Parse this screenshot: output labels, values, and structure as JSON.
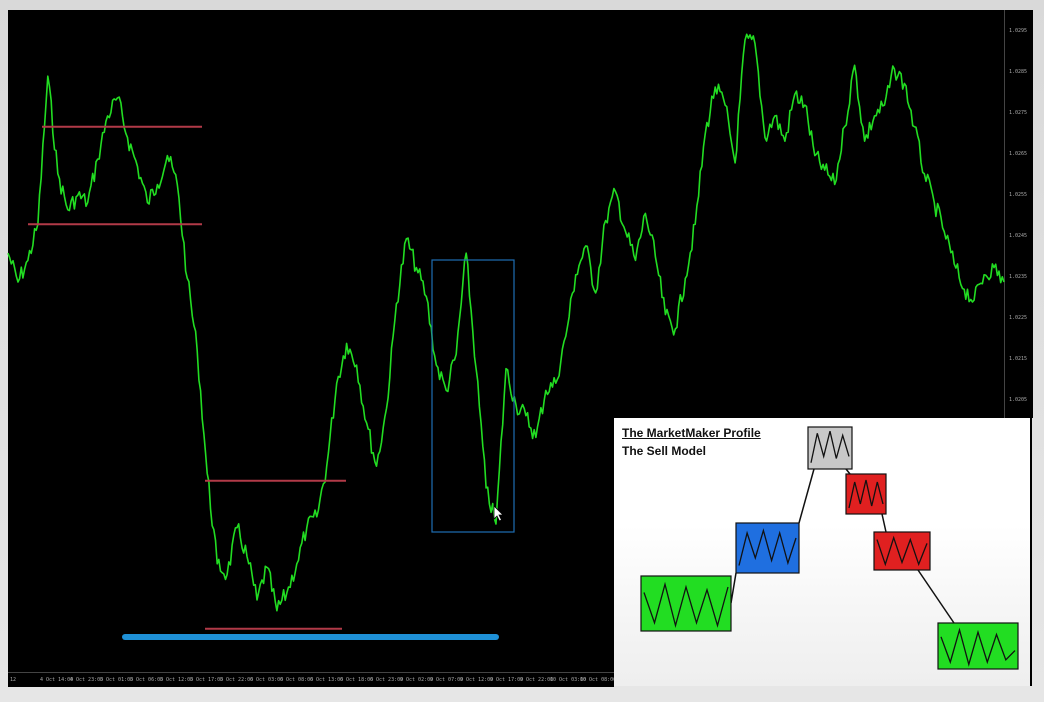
{
  "colors": {
    "background": "#000000",
    "price_line": "#22dd22",
    "range_line": "#b23a48",
    "highlight_box": "#1e6db3",
    "blue_bar": "#1e90d6",
    "box_green": "#22dd22",
    "box_blue": "#1f6fe0",
    "box_grey": "#c8c8c8",
    "box_red": "#e02020"
  },
  "price_axis": {
    "ticks": [
      "1.0295",
      "1.0285",
      "1.0275",
      "1.0265",
      "1.0255",
      "1.0245",
      "1.0235",
      "1.0225",
      "1.0215",
      "1.0205"
    ]
  },
  "time_axis": {
    "ticks": [
      "12",
      "4 Oct 14:00",
      "4 Oct 23:00",
      "5 Oct 01:00",
      "5 Oct 06:00",
      "5 Oct 12:00",
      "5 Oct 17:00",
      "5 Oct 22:00",
      "6 Oct 03:00",
      "6 Oct 08:00",
      "6 Oct 13:00",
      "6 Oct 18:00",
      "6 Oct 23:00",
      "9 Oct 02:00",
      "9 Oct 07:00",
      "9 Oct 12:00",
      "9 Oct 17:00",
      "9 Oct 22:00",
      "10 Oct 03:00",
      "10 Oct 08:00"
    ]
  },
  "chart_data": {
    "type": "line",
    "series": [
      {
        "x": [
          0,
          10,
          20,
          30,
          40,
          50,
          60,
          70,
          80,
          90,
          100,
          110,
          120,
          130,
          140,
          150,
          160,
          170,
          180,
          190,
          200,
          210,
          220,
          230,
          240,
          250,
          260,
          270,
          280,
          290,
          300,
          310,
          320,
          330,
          340,
          350,
          360,
          370,
          380,
          390,
          400,
          410,
          420,
          430,
          440,
          450,
          460,
          470,
          480,
          490,
          500,
          510,
          520,
          530,
          540,
          550,
          560,
          570,
          580,
          590,
          600,
          610,
          620,
          630,
          640,
          650,
          660,
          670,
          680,
          690,
          700,
          710,
          720,
          730,
          740,
          750,
          760,
          770,
          780,
          790,
          800,
          810,
          820,
          830,
          840,
          850,
          860,
          870,
          880,
          890,
          900,
          910,
          920,
          930,
          940,
          950,
          960,
          970,
          980,
          990,
          1000
        ],
        "y": [
          1.0237,
          1.0229,
          1.0235,
          1.0245,
          1.0286,
          1.0259,
          1.0249,
          1.0253,
          1.0251,
          1.0263,
          1.0275,
          1.028,
          1.0269,
          1.0261,
          1.0251,
          1.0256,
          1.0264,
          1.0256,
          1.023,
          1.021,
          1.0176,
          1.0151,
          1.0148,
          1.0161,
          1.0153,
          1.0141,
          1.015,
          1.0138,
          1.0143,
          1.0151,
          1.0161,
          1.0164,
          1.0178,
          1.0201,
          1.0212,
          1.0206,
          1.019,
          1.0178,
          1.0194,
          1.0223,
          1.0241,
          1.0233,
          1.0225,
          1.0206,
          1.0199,
          1.0209,
          1.0237,
          1.0205,
          1.0172,
          1.0162,
          1.0205,
          1.0195,
          1.0192,
          1.0186,
          1.0199,
          1.0201,
          1.0214,
          1.0231,
          1.0239,
          1.0226,
          1.0246,
          1.0254,
          1.0243,
          1.0235,
          1.0248,
          1.0236,
          1.022,
          1.0216,
          1.023,
          1.0245,
          1.027,
          1.0283,
          1.0278,
          1.0262,
          1.0296,
          1.0295,
          1.0269,
          1.0275,
          1.0268,
          1.0281,
          1.0278,
          1.0264,
          1.026,
          1.0256,
          1.0272,
          1.0289,
          1.0268,
          1.0275,
          1.0278,
          1.0288,
          1.0284,
          1.0272,
          1.0259,
          1.0251,
          1.0243,
          1.0234,
          1.0227,
          1.0224,
          1.0231,
          1.0233,
          1.0229
        ]
      }
    ],
    "ylim": [
      1.0131,
      1.0301
    ],
    "grid": false
  },
  "annotations": {
    "top_range": {
      "high": 1.0272,
      "low": 1.0245
    },
    "bottom_range": {
      "high": 1.0174,
      "low": 1.0133
    },
    "blue_bar_level": 1.0131
  },
  "model_panel": {
    "title": "The MarketMaker Profile",
    "subtitle": "The Sell Model",
    "boxes": [
      {
        "color": "green",
        "zigzag": [
          0.3,
          0.85,
          0.15,
          0.9,
          0.2,
          0.85,
          0.25,
          0.9,
          0.2
        ]
      },
      {
        "color": "blue",
        "zigzag": [
          0.85,
          0.2,
          0.7,
          0.15,
          0.75,
          0.2,
          0.8,
          0.3
        ]
      },
      {
        "color": "grey",
        "zigzag": [
          0.85,
          0.15,
          0.7,
          0.1,
          0.75,
          0.2,
          0.7
        ]
      },
      {
        "color": "red",
        "zigzag": [
          0.85,
          0.2,
          0.75,
          0.15,
          0.8,
          0.2,
          0.75
        ]
      },
      {
        "color": "red",
        "zigzag": [
          0.2,
          0.85,
          0.15,
          0.8,
          0.2,
          0.85,
          0.3
        ]
      },
      {
        "color": "green",
        "zigzag": [
          0.3,
          0.85,
          0.15,
          0.9,
          0.2,
          0.85,
          0.25,
          0.8,
          0.6
        ]
      }
    ]
  }
}
